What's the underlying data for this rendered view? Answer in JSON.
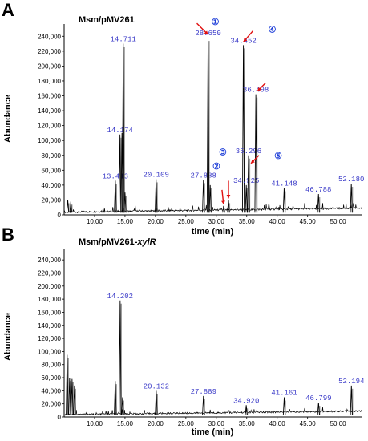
{
  "panels": [
    {
      "letter": "A",
      "title": "Msm/pMV261",
      "title_italic_suffix": "",
      "ylabel": "Abundance",
      "xlabel": "time (min)",
      "y_tick_labels": [
        "0",
        "20,000",
        "40,000",
        "60,000",
        "80,000",
        "100,000",
        "120,000",
        "140,000",
        "160,000",
        "180,000",
        "200,000",
        "220,000",
        "240,000"
      ],
      "x_tick_labels": [
        "10.00",
        "15.00",
        "20.00",
        "25.00",
        "30.00",
        "35.00",
        "40.00",
        "45.00",
        "50.00"
      ]
    },
    {
      "letter": "B",
      "title": "Msm/pMV261-",
      "title_italic_suffix": "xylR",
      "ylabel": "Abundance",
      "xlabel": "time (min)",
      "y_tick_labels": [
        "0",
        "20,000",
        "40,000",
        "60,000",
        "80,000",
        "100,000",
        "120,000",
        "140,000",
        "160,000",
        "180,000",
        "200,000",
        "220,000",
        "240,000"
      ],
      "x_tick_labels": [
        "10.00",
        "15.00",
        "20.00",
        "25.00",
        "30.00",
        "35.00",
        "40.00",
        "45.00",
        "50.00"
      ]
    }
  ],
  "chart_data": [
    {
      "type": "line",
      "title": "Msm/pMV261",
      "xlabel": "time (min)",
      "ylabel": "Abundance",
      "xlim": [
        5,
        54
      ],
      "ylim": [
        0,
        250000
      ],
      "y_ticks": [
        0,
        20000,
        40000,
        60000,
        80000,
        100000,
        120000,
        140000,
        160000,
        180000,
        200000,
        220000,
        240000
      ],
      "x_ticks": [
        10,
        15,
        20,
        25,
        30,
        35,
        40,
        45,
        50
      ],
      "peaks": [
        {
          "x": 5.6,
          "y": 20000
        },
        {
          "x": 6.1,
          "y": 18000
        },
        {
          "x": 13.413,
          "y": 46000,
          "label": "13.413"
        },
        {
          "x": 14.174,
          "y": 108000,
          "label": "14.174"
        },
        {
          "x": 14.5,
          "y": 110000
        },
        {
          "x": 14.711,
          "y": 230000,
          "label": "14.711"
        },
        {
          "x": 15.0,
          "y": 30000
        },
        {
          "x": 20.109,
          "y": 48000,
          "label": "20.109"
        },
        {
          "x": 27.888,
          "y": 47000,
          "label": "27.888"
        },
        {
          "x": 28.65,
          "y": 238000,
          "label": "28.650"
        },
        {
          "x": 29.0,
          "y": 40000
        },
        {
          "x": 31.2,
          "y": 12000
        },
        {
          "x": 32.0,
          "y": 20000
        },
        {
          "x": 34.452,
          "y": 228000,
          "label": "34.452"
        },
        {
          "x": 34.925,
          "y": 40000,
          "label": "34.925"
        },
        {
          "x": 35.296,
          "y": 80000,
          "label": "35.296"
        },
        {
          "x": 36.498,
          "y": 162000,
          "label": "36.498"
        },
        {
          "x": 41.148,
          "y": 36000,
          "label": "41.148"
        },
        {
          "x": 46.788,
          "y": 28000,
          "label": "46.788"
        },
        {
          "x": 52.18,
          "y": 42000,
          "label": "52.180"
        }
      ],
      "annotations": [
        {
          "number": "①",
          "peak_x": 28.65
        },
        {
          "number": "②",
          "peak_x": 31.2
        },
        {
          "number": "③",
          "peak_x": 32.0
        },
        {
          "number": "④",
          "peak_x": 34.452
        },
        {
          "number": "⑤",
          "peak_x": 35.296
        },
        {
          "number": "",
          "peak_x": 36.498
        }
      ]
    },
    {
      "type": "line",
      "title": "Msm/pMV261-xylR",
      "xlabel": "time (min)",
      "ylabel": "Abundance",
      "xlim": [
        5,
        54
      ],
      "ylim": [
        0,
        250000
      ],
      "y_ticks": [
        0,
        20000,
        40000,
        60000,
        80000,
        100000,
        120000,
        140000,
        160000,
        180000,
        200000,
        220000,
        240000
      ],
      "x_ticks": [
        10,
        15,
        20,
        25,
        30,
        35,
        40,
        45,
        50
      ],
      "peaks": [
        {
          "x": 5.5,
          "y": 95000
        },
        {
          "x": 5.9,
          "y": 60000
        },
        {
          "x": 6.3,
          "y": 58000
        },
        {
          "x": 6.7,
          "y": 48000
        },
        {
          "x": 13.4,
          "y": 55000
        },
        {
          "x": 14.202,
          "y": 178000,
          "label": "14.202"
        },
        {
          "x": 14.6,
          "y": 30000
        },
        {
          "x": 20.132,
          "y": 40000,
          "label": "20.132"
        },
        {
          "x": 27.889,
          "y": 32000,
          "label": "27.889"
        },
        {
          "x": 34.92,
          "y": 18000,
          "label": "34.920"
        },
        {
          "x": 41.161,
          "y": 30000,
          "label": "41.161"
        },
        {
          "x": 46.799,
          "y": 22000,
          "label": "46.799"
        },
        {
          "x": 52.194,
          "y": 48000,
          "label": "52.194"
        }
      ],
      "annotations": []
    }
  ],
  "colors": {
    "trace": "#000000",
    "trace_shadow": "#9a9a9a",
    "peak_label": "#3a3ac8",
    "annotation_circle": "#1f3fd8",
    "arrow": "#e01010"
  }
}
